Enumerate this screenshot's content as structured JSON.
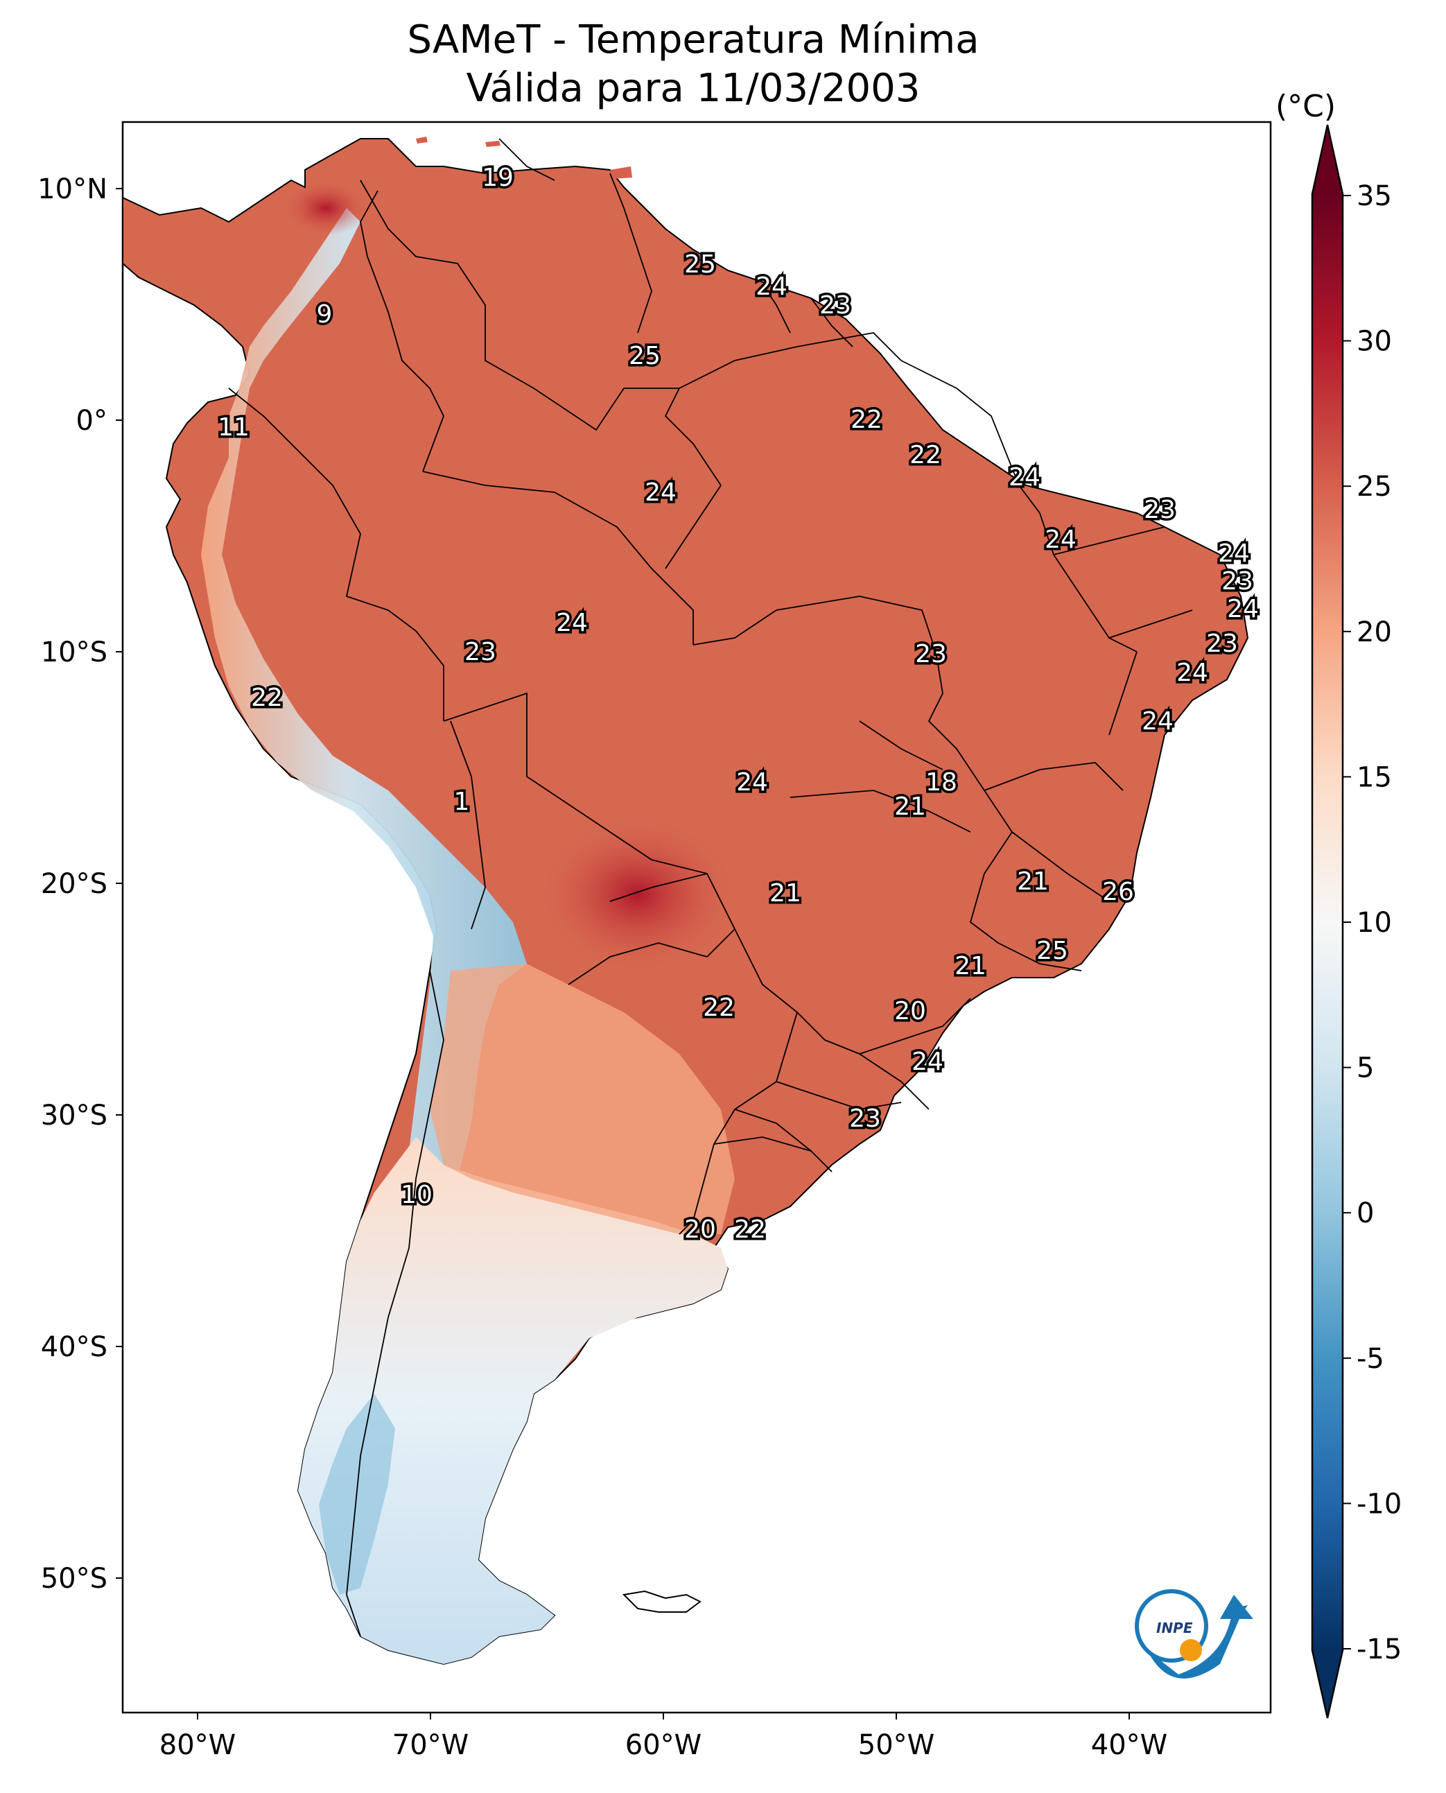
{
  "title": "SAMeT - Temperatura Mínima",
  "subtitle": "Válida para 11/03/2003",
  "colorbar": {
    "unit": "(°C)",
    "ticks": [
      "35",
      "30",
      "25",
      "20",
      "15",
      "10",
      "5",
      "0",
      "-5",
      "-10",
      "-15"
    ],
    "min": -15,
    "max": 35,
    "colors": [
      "#053061",
      "#2166ac",
      "#4393c3",
      "#92c5de",
      "#d1e5f0",
      "#f7f7f7",
      "#fddbc7",
      "#f4a582",
      "#d6604d",
      "#b2182b",
      "#67001f"
    ]
  },
  "axes": {
    "lon_labels": [
      "80°W",
      "70°W",
      "60°W",
      "50°W",
      "40°W"
    ],
    "lat_labels": [
      "10°N",
      "0°",
      "10°S",
      "20°S",
      "30°S",
      "40°S",
      "50°S"
    ]
  },
  "station_values": [
    {
      "id": "v1",
      "label": "19"
    },
    {
      "id": "v2",
      "label": "25"
    },
    {
      "id": "v3",
      "label": "24"
    },
    {
      "id": "v4",
      "label": "23"
    },
    {
      "id": "v5",
      "label": "9"
    },
    {
      "id": "v6",
      "label": "25"
    },
    {
      "id": "v7",
      "label": "11"
    },
    {
      "id": "v8",
      "label": "22"
    },
    {
      "id": "v9",
      "label": "22"
    },
    {
      "id": "v10",
      "label": "24"
    },
    {
      "id": "v11",
      "label": "24"
    },
    {
      "id": "v12",
      "label": "23"
    },
    {
      "id": "v13",
      "label": "24"
    },
    {
      "id": "v14",
      "label": "24"
    },
    {
      "id": "v15",
      "label": "23"
    },
    {
      "id": "v16",
      "label": "24"
    },
    {
      "id": "v17",
      "label": "24"
    },
    {
      "id": "v18",
      "label": "23"
    },
    {
      "id": "v19",
      "label": "23"
    },
    {
      "id": "v20",
      "label": "23"
    },
    {
      "id": "v21",
      "label": "24"
    },
    {
      "id": "v22",
      "label": "22"
    },
    {
      "id": "v23",
      "label": "24"
    },
    {
      "id": "v24",
      "label": "18"
    },
    {
      "id": "v25",
      "label": "1"
    },
    {
      "id": "v26",
      "label": "24"
    },
    {
      "id": "v27",
      "label": "21"
    },
    {
      "id": "v28",
      "label": "21"
    },
    {
      "id": "v29",
      "label": "21"
    },
    {
      "id": "v30",
      "label": "26"
    },
    {
      "id": "v31",
      "label": "21"
    },
    {
      "id": "v32",
      "label": "25"
    },
    {
      "id": "v33",
      "label": "22"
    },
    {
      "id": "v34",
      "label": "20"
    },
    {
      "id": "v35",
      "label": "24"
    },
    {
      "id": "v36",
      "label": "23"
    },
    {
      "id": "v37",
      "label": "10"
    },
    {
      "id": "v38",
      "label": "20"
    },
    {
      "id": "v39",
      "label": "22"
    }
  ],
  "logo": {
    "text": "INPE"
  }
}
